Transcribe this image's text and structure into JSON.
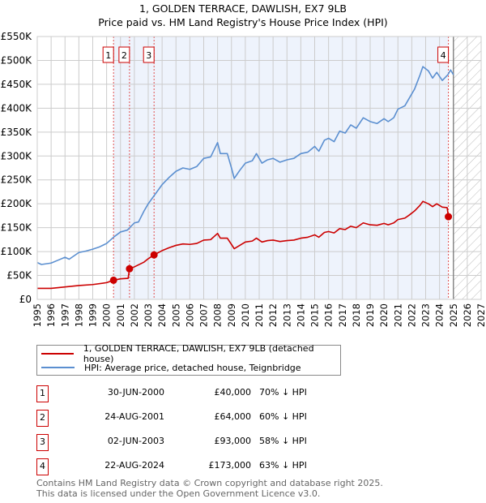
{
  "chart_data": {
    "type": "line",
    "title": "1, GOLDEN TERRACE, DAWLISH, EX7 9LB",
    "subtitle": "Price paid vs. HM Land Registry's House Price Index (HPI)",
    "xlim": [
      1995,
      2027
    ],
    "ylim": [
      0,
      550000
    ],
    "x_ticks": [
      "1995",
      "1996",
      "1997",
      "1998",
      "1999",
      "2000",
      "2001",
      "2002",
      "2003",
      "2004",
      "2005",
      "2006",
      "2007",
      "2008",
      "2009",
      "2010",
      "2011",
      "2012",
      "2013",
      "2014",
      "2015",
      "2016",
      "2017",
      "2018",
      "2019",
      "2020",
      "2021",
      "2022",
      "2023",
      "2024",
      "2025",
      "2026",
      "2027"
    ],
    "y_ticks": [
      {
        "v": 0,
        "label": "£0"
      },
      {
        "v": 50000,
        "label": "£50K"
      },
      {
        "v": 100000,
        "label": "£100K"
      },
      {
        "v": 150000,
        "label": "£150K"
      },
      {
        "v": 200000,
        "label": "£200K"
      },
      {
        "v": 250000,
        "label": "£250K"
      },
      {
        "v": 300000,
        "label": "£300K"
      },
      {
        "v": 350000,
        "label": "£350K"
      },
      {
        "v": 400000,
        "label": "£400K"
      },
      {
        "v": 450000,
        "label": "£450K"
      },
      {
        "v": 500000,
        "label": "£500K"
      },
      {
        "v": 550000,
        "label": "£550K"
      }
    ],
    "grid": true,
    "series": [
      {
        "name": "1, GOLDEN TERRACE, DAWLISH, EX7 9LB (detached house)",
        "color": "#cc0000",
        "points": [
          [
            1995,
            23
          ],
          [
            1996,
            23
          ],
          [
            1997,
            26
          ],
          [
            1998,
            29
          ],
          [
            1999,
            31
          ],
          [
            2000,
            35
          ],
          [
            2000.5,
            40
          ],
          [
            2001,
            43
          ],
          [
            2001.55,
            44
          ],
          [
            2001.65,
            64
          ],
          [
            2002,
            68
          ],
          [
            2002.7,
            78
          ],
          [
            2003,
            85
          ],
          [
            2003.42,
            93
          ],
          [
            2004,
            102
          ],
          [
            2004.5,
            108
          ],
          [
            2005,
            113
          ],
          [
            2005.5,
            116
          ],
          [
            2006,
            115
          ],
          [
            2006.5,
            117
          ],
          [
            2007,
            124
          ],
          [
            2007.5,
            125
          ],
          [
            2008,
            138
          ],
          [
            2008.2,
            128
          ],
          [
            2008.7,
            128
          ],
          [
            2009,
            115
          ],
          [
            2009.2,
            106
          ],
          [
            2009.6,
            113
          ],
          [
            2010,
            120
          ],
          [
            2010.5,
            122
          ],
          [
            2010.8,
            128
          ],
          [
            2011.2,
            120
          ],
          [
            2011.6,
            123
          ],
          [
            2012,
            124
          ],
          [
            2012.5,
            121
          ],
          [
            2013,
            123
          ],
          [
            2013.5,
            124
          ],
          [
            2014,
            128
          ],
          [
            2014.5,
            130
          ],
          [
            2015,
            135
          ],
          [
            2015.3,
            130
          ],
          [
            2015.7,
            140
          ],
          [
            2016,
            142
          ],
          [
            2016.4,
            139
          ],
          [
            2016.8,
            148
          ],
          [
            2017.2,
            146
          ],
          [
            2017.6,
            153
          ],
          [
            2018,
            150
          ],
          [
            2018.5,
            160
          ],
          [
            2019,
            156
          ],
          [
            2019.5,
            155
          ],
          [
            2020,
            159
          ],
          [
            2020.3,
            156
          ],
          [
            2020.7,
            160
          ],
          [
            2021,
            167
          ],
          [
            2021.5,
            170
          ],
          [
            2021.8,
            176
          ],
          [
            2022.2,
            185
          ],
          [
            2022.6,
            197
          ],
          [
            2022.8,
            205
          ],
          [
            2023.2,
            200
          ],
          [
            2023.5,
            194
          ],
          [
            2023.8,
            200
          ],
          [
            2024.2,
            193
          ],
          [
            2024.55,
            192
          ],
          [
            2024.64,
            173
          ]
        ]
      },
      {
        "name": "HPI: Average price, detached house, Teignbridge",
        "color": "#5b8fd0",
        "points": [
          [
            1995,
            77
          ],
          [
            1995.3,
            73
          ],
          [
            1996,
            76
          ],
          [
            1996.5,
            82
          ],
          [
            1997,
            88
          ],
          [
            1997.3,
            84
          ],
          [
            1998,
            98
          ],
          [
            1998.5,
            101
          ],
          [
            1999,
            105
          ],
          [
            1999.5,
            110
          ],
          [
            2000,
            117
          ],
          [
            2000.5,
            130
          ],
          [
            2001,
            141
          ],
          [
            2001.5,
            145
          ],
          [
            2002,
            160
          ],
          [
            2002.3,
            162
          ],
          [
            2002.7,
            185
          ],
          [
            2003,
            200
          ],
          [
            2003.5,
            220
          ],
          [
            2004,
            240
          ],
          [
            2004.5,
            255
          ],
          [
            2005,
            268
          ],
          [
            2005.5,
            275
          ],
          [
            2006,
            272
          ],
          [
            2006.5,
            278
          ],
          [
            2007,
            295
          ],
          [
            2007.5,
            298
          ],
          [
            2008,
            328
          ],
          [
            2008.2,
            305
          ],
          [
            2008.7,
            305
          ],
          [
            2009,
            275
          ],
          [
            2009.2,
            253
          ],
          [
            2009.6,
            270
          ],
          [
            2010,
            285
          ],
          [
            2010.5,
            290
          ],
          [
            2010.8,
            305
          ],
          [
            2011.2,
            285
          ],
          [
            2011.6,
            292
          ],
          [
            2012,
            295
          ],
          [
            2012.5,
            287
          ],
          [
            2013,
            292
          ],
          [
            2013.5,
            295
          ],
          [
            2014,
            305
          ],
          [
            2014.5,
            308
          ],
          [
            2015,
            320
          ],
          [
            2015.3,
            310
          ],
          [
            2015.7,
            333
          ],
          [
            2016,
            337
          ],
          [
            2016.4,
            330
          ],
          [
            2016.8,
            352
          ],
          [
            2017.2,
            348
          ],
          [
            2017.6,
            365
          ],
          [
            2018,
            358
          ],
          [
            2018.5,
            380
          ],
          [
            2019,
            372
          ],
          [
            2019.5,
            368
          ],
          [
            2020,
            378
          ],
          [
            2020.3,
            372
          ],
          [
            2020.7,
            380
          ],
          [
            2021,
            398
          ],
          [
            2021.5,
            405
          ],
          [
            2021.8,
            420
          ],
          [
            2022.2,
            440
          ],
          [
            2022.6,
            470
          ],
          [
            2022.8,
            487
          ],
          [
            2023.2,
            478
          ],
          [
            2023.5,
            463
          ],
          [
            2023.8,
            475
          ],
          [
            2024.2,
            458
          ],
          [
            2024.6,
            470
          ],
          [
            2024.8,
            480
          ],
          [
            2025,
            470
          ]
        ]
      }
    ],
    "y_units": "thousands GBP",
    "sales": [
      {
        "n": "1",
        "x": 2000.5,
        "price": 40,
        "date": "30-JUN-2000",
        "price_label": "£40,000",
        "hpi": "70% ↓ HPI"
      },
      {
        "n": "2",
        "x": 2001.65,
        "price": 64,
        "date": "24-AUG-2001",
        "price_label": "£64,000",
        "hpi": "60% ↓ HPI"
      },
      {
        "n": "3",
        "x": 2003.42,
        "price": 93,
        "date": "02-JUN-2003",
        "price_label": "£93,000",
        "hpi": "58% ↓ HPI"
      },
      {
        "n": "4",
        "x": 2024.64,
        "price": 173,
        "date": "22-AUG-2024",
        "price_label": "£173,000",
        "hpi": "63% ↓ HPI"
      }
    ],
    "shaded_range": [
      2000.5,
      2024.64
    ],
    "forecast_from": 2025
  },
  "footer": {
    "line1": "Contains HM Land Registry data © Crown copyright and database right 2025.",
    "line2": "This data is licensed under the Open Government Licence v3.0."
  }
}
